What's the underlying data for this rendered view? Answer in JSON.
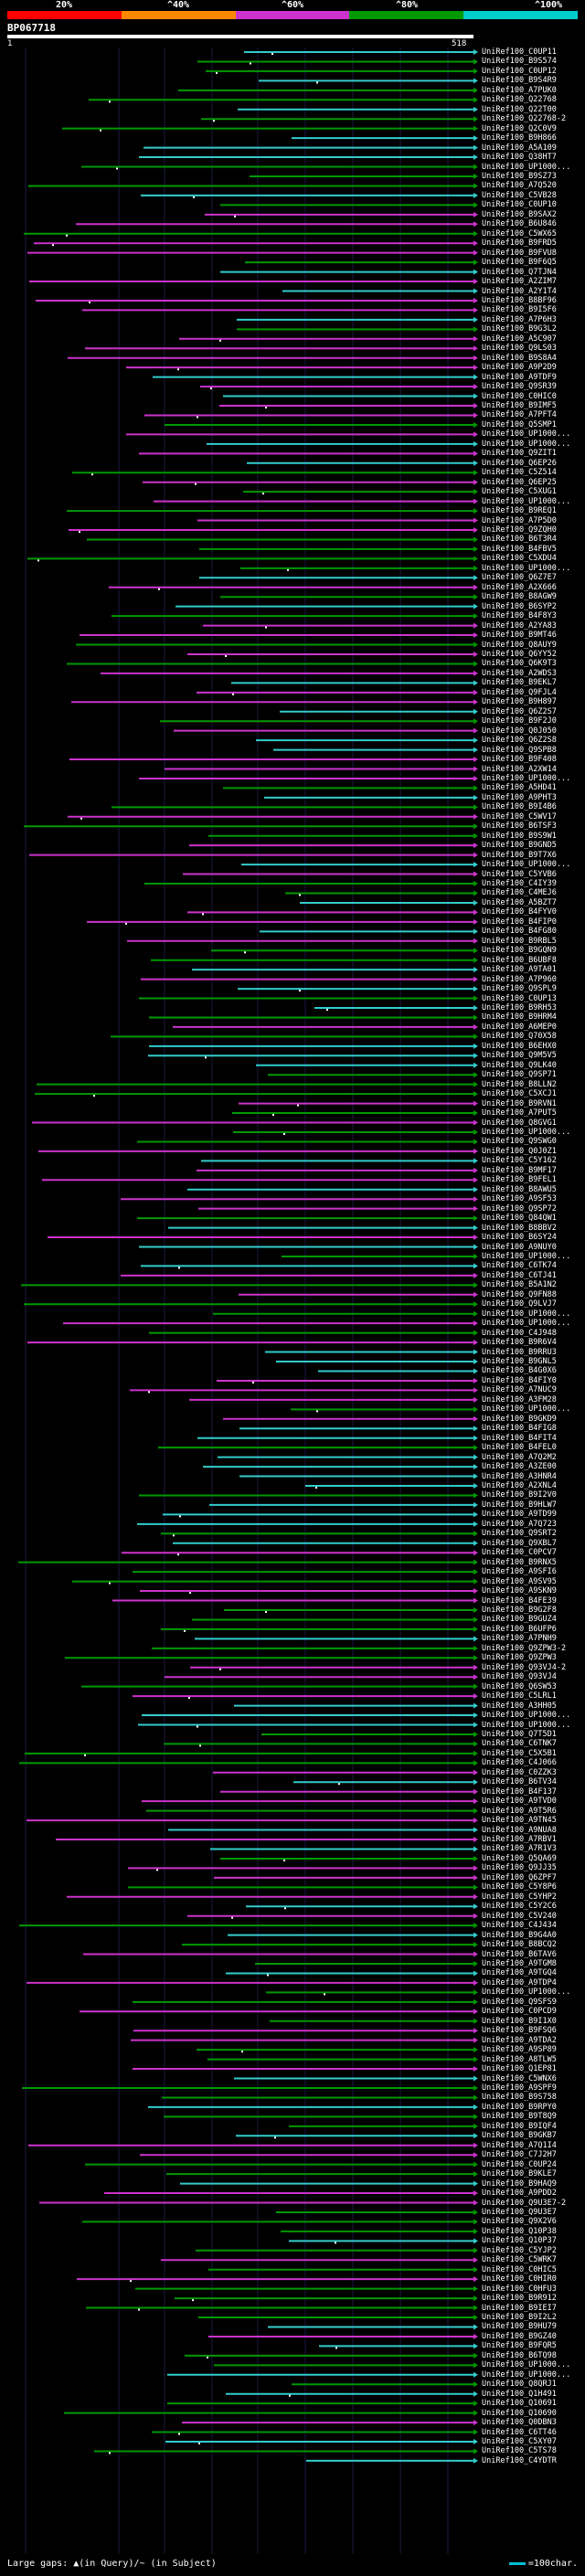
{
  "score_legend": {
    "labels": [
      "20%",
      "^40%",
      "^60%",
      "^80%",
      "^100%"
    ],
    "colors": [
      "#ff0000",
      "#ff8800",
      "#cc33cc",
      "#009900",
      "#00cccc"
    ]
  },
  "query": {
    "id": "BP067718",
    "start": "1",
    "end": "518"
  },
  "colors": {
    "magenta": "#cc33cc",
    "green": "#009900",
    "cyan": "#33cccc",
    "gap": "#ffffff",
    "guide": "#1a1a44"
  },
  "hits": [
    "UniRef100_C0UP11",
    "UniRef100_B9S574",
    "UniRef100_C0UP12",
    "UniRef100_B9S4R9",
    "UniRef100_A7PUK0",
    "UniRef100_Q22768",
    "UniRef100_Q22T00",
    "UniRef100_Q22768-2",
    "UniRef100_Q2C0V9",
    "UniRef100_B9H866",
    "UniRef100_A5A109",
    "UniRef100_Q38HT7",
    "UniRef100_UP1000...",
    "UniRef100_B9SZ73",
    "UniRef100_A7Q520",
    "UniRef100_C5VB28",
    "UniRef100_C0UP10",
    "UniRef100_B9SAX2",
    "UniRef100_B6U846",
    "UniRef100_C5WX65",
    "UniRef100_B9FRD5",
    "UniRef100_B9FVU8",
    "UniRef100_B9F6Q5",
    "UniRef100_Q7TJN4",
    "UniRef100_A2ZIM7",
    "UniRef100_A2Y1T4",
    "UniRef100_B8BF96",
    "UniRef100_B9I5F6",
    "UniRef100_A7P6H3",
    "UniRef100_B9G3L2",
    "UniRef100_A5C907",
    "UniRef100_Q9LS03",
    "UniRef100_B9S8A4",
    "UniRef100_A9P2D9",
    "UniRef100_A9TDF9",
    "UniRef100_Q9SR39",
    "UniRef100_C0HIC0",
    "UniRef100_B9IMF5",
    "UniRef100_A7PFT4",
    "UniRef100_Q5SMP1",
    "UniRef100_UP1000...",
    "UniRef100_UP1000...",
    "UniRef100_Q9ZIT1",
    "UniRef100_Q6EP26",
    "UniRef100_C5Z514",
    "UniRef100_Q6EP25",
    "UniRef100_C5XUG1",
    "UniRef100_UP1000...",
    "UniRef100_B9REQ1",
    "UniRef100_A7P5D0",
    "UniRef100_Q9ZQH0",
    "UniRef100_B6T3R4",
    "UniRef100_B4FBV5",
    "UniRef100_C5XDU4",
    "UniRef100_UP1000...",
    "UniRef100_Q6Z7E7",
    "UniRef100_A2X666",
    "UniRef100_B8AGW9",
    "UniRef100_B6SYP2",
    "UniRef100_B4F8Y3",
    "UniRef100_A2YA83",
    "UniRef100_B9MT46",
    "UniRef100_Q8AUY9",
    "UniRef100_Q6YY52",
    "UniRef100_Q6K9T3",
    "UniRef100_A2WDS3",
    "UniRef100_B9EKL7",
    "UniRef100_Q9FJL4",
    "UniRef100_B9H897",
    "UniRef100_Q6Z2S7",
    "UniRef100_B9F2J0",
    "UniRef100_Q0J050",
    "UniRef100_Q6Z2S8",
    "UniRef100_Q9SPB8",
    "UniRef100_B9F408",
    "UniRef100_A2XW14",
    "UniRef100_UP1000...",
    "UniRef100_A5HD41",
    "UniRef100_A9PHT3",
    "UniRef100_B9I4B6",
    "UniRef100_C5WV17",
    "UniRef100_B6TSF3",
    "UniRef100_B9S9W1",
    "UniRef100_B9GND5",
    "UniRef100_B9T7X6",
    "UniRef100_UP1000...",
    "UniRef100_C5YVB6",
    "UniRef100_C4IY39",
    "UniRef100_C4MEJ6",
    "UniRef100_A5BZT7",
    "UniRef100_B4FYV0",
    "UniRef100_B4FIP0",
    "UniRef100_B4FG80",
    "UniRef100_B9RBL5",
    "UniRef100_B9GQN9",
    "UniRef100_B6UBF8",
    "UniRef100_A9TA01",
    "UniRef100_A7P960",
    "UniRef100_Q9SPL9",
    "UniRef100_C0UP13",
    "UniRef100_B9RH53",
    "UniRef100_B9HRM4",
    "UniRef100_A6MEP0",
    "UniRef100_Q70X58",
    "UniRef100_B6EHX0",
    "UniRef100_Q9M5V5",
    "UniRef100_Q9LK40",
    "UniRef100_Q9SP71",
    "UniRef100_B8LLN2",
    "UniRef100_C5XCJ1",
    "UniRef100_B9RVN1",
    "UniRef100_A7PUT5",
    "UniRef100_Q8GVG1",
    "UniRef100_UP1000...",
    "UniRef100_Q9SWG0",
    "UniRef100_Q0J0Z1",
    "UniRef100_C5Y162",
    "UniRef100_B9MF17",
    "UniRef100_B9FEL1",
    "UniRef100_B8AWU5",
    "UniRef100_A9SF53",
    "UniRef100_Q9SP72",
    "UniRef100_Q84QW1",
    "UniRef100_B8BBV2",
    "UniRef100_B6SY24",
    "UniRef100_A9NUY0",
    "UniRef100_UP1000...",
    "UniRef100_C6TK74",
    "UniRef100_C6TJ41",
    "UniRef100_B5A1N2",
    "UniRef100_Q9FN88",
    "UniRef100_Q9LVJ7",
    "UniRef100_UP1000...",
    "UniRef100_UP1000...",
    "UniRef100_C4J948",
    "UniRef100_B9R6V4",
    "UniRef100_B9RRU3",
    "UniRef100_B9GNL5",
    "UniRef100_B4G0X6",
    "UniRef100_B4FIY0",
    "UniRef100_A7NUC9",
    "UniRef100_A3FM28",
    "UniRef100_UP1000...",
    "UniRef100_B9GKD9",
    "UniRef100_B4FIG8",
    "UniRef100_B4FIT4",
    "UniRef100_B4FEL0",
    "UniRef100_A7Q2M2",
    "UniRef100_A3ZE00",
    "UniRef100_A3HNR4",
    "UniRef100_A2XNL4",
    "UniRef100_B9I2V0",
    "UniRef100_B9HLW7",
    "UniRef100_A9TD99",
    "UniRef100_A7Q723",
    "UniRef100_Q9SRT2",
    "UniRef100_Q9XBL7",
    "UniRef100_C0PCV7",
    "UniRef100_B9RNX5",
    "UniRef100_A9SFI6",
    "UniRef100_A9SV95",
    "UniRef100_A9SKN9",
    "UniRef100_B4FE39",
    "UniRef100_B9G2F8",
    "UniRef100_B9GUZ4",
    "UniRef100_B6UFP6",
    "UniRef100_A7PNH9",
    "UniRef100_Q9ZPW3-2",
    "UniRef100_Q9ZPW3",
    "UniRef100_Q93VJ4-2",
    "UniRef100_Q93VJ4",
    "UniRef100_Q6SW53",
    "UniRef100_C5LRL1",
    "UniRef100_A3HH05",
    "UniRef100_UP1000...",
    "UniRef100_UP1000...",
    "UniRef100_Q7T5D1",
    "UniRef100_C6TNK7",
    "UniRef100_C5X5B1",
    "UniRef100_C4J066",
    "UniRef100_C0ZZK3",
    "UniRef100_B6TV34",
    "UniRef100_B4F137",
    "UniRef100_A9TVD0",
    "UniRef100_A9T5R6",
    "UniRef100_A9TN45",
    "UniRef100_A9NUA8",
    "UniRef100_A7RBV1",
    "UniRef100_A7R1V3",
    "UniRef100_Q5QA69",
    "UniRef100_Q9JJ35",
    "UniRef100_Q6ZPF7",
    "UniRef100_C5Y8P6",
    "UniRef100_C5YHP2",
    "UniRef100_C5Y2C6",
    "UniRef100_C5V240",
    "UniRef100_C4J434",
    "UniRef100_B9G4A0",
    "UniRef100_B8BCQ2",
    "UniRef100_B6TAV6",
    "UniRef100_A9TGM8",
    "UniRef100_A9TGQ4",
    "UniRef100_A9TDP4",
    "UniRef100_UP1000...",
    "UniRef100_Q9SFS9",
    "UniRef100_C0PCD9",
    "UniRef100_B9I1X0",
    "UniRef100_B9FSQ6",
    "UniRef100_A9TDA2",
    "UniRef100_A9SP89",
    "UniRef100_A8TLW5",
    "UniRef100_Q1EP81",
    "UniRef100_C5WNX6",
    "UniRef100_A9SPF9",
    "UniRef100_B9S758",
    "UniRef100_B9RPY0",
    "UniRef100_B9T8Q9",
    "UniRef100_B9IQF4",
    "UniRef100_B9GKB7",
    "UniRef100_A7Q1I4",
    "UniRef100_C7J2H7",
    "UniRef100_C0UP24",
    "UniRef100_B9KLE7",
    "UniRef100_B9HAQ9",
    "UniRef100_A9PDD2",
    "UniRef100_Q9U3E7-2",
    "UniRef100_Q9U3E7",
    "UniRef100_Q9X2V6",
    "UniRef100_Q10P38",
    "UniRef100_Q10P37",
    "UniRef100_C5YJP2",
    "UniRef100_C5WRK7",
    "UniRef100_C0HIC5",
    "UniRef100_C0HIR0",
    "UniRef100_C0HFU3",
    "UniRef100_B9R912",
    "UniRef100_B9IEI7",
    "UniRef100_B9I2L2",
    "UniRef100_B9HU79",
    "UniRef100_B9GZ40",
    "UniRef100_B9FQR5",
    "UniRef100_B6TQ98",
    "UniRef100_UP1000...",
    "UniRef100_UP1000...",
    "UniRef100_Q8QRJ1",
    "UniRef100_Q1H491",
    "UniRef100_Q10691",
    "UniRef100_Q10690",
    "UniRef100_Q0DBN3",
    "UniRef100_C6TT46",
    "UniRef100_C5XY07",
    "UniRef100_C5TS78",
    "UniRef100_C4YDTR"
  ],
  "footer": {
    "left": "Large gaps: ▲(in Query)/~ (in Subject)",
    "right": "=100char."
  }
}
